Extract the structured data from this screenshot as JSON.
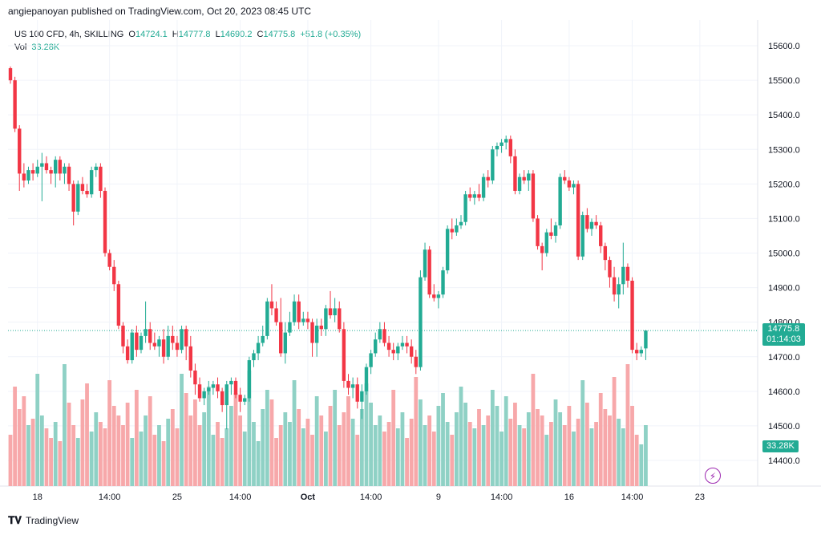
{
  "header": {
    "publisher_line": "angiepanoyan published on TradingView.com, Oct 20, 2023 08:45 UTC"
  },
  "legend": {
    "title": "US 100 CFD, 4h, SKILLING",
    "o_label": "O",
    "o": "14724.1",
    "h_label": "H",
    "h": "14777.8",
    "l_label": "L",
    "l": "14690.2",
    "c_label": "C",
    "c": "14775.8",
    "change": "+51.8 (+0.35%)",
    "vol_label": "Vol",
    "vol": "33.28K"
  },
  "price_tag": {
    "price": "14775.8",
    "countdown": "01:14:03"
  },
  "volume_tag": "33.28K",
  "footer": {
    "brand": "TradingView"
  },
  "colors": {
    "up": "#22ab94",
    "down": "#f23645",
    "up_vol": "#8fd1c5",
    "down_vol": "#f7a8aa",
    "grid": "#f0f3fa"
  },
  "chart_data": {
    "type": "candlestick",
    "y_ticks": [
      14400,
      14500,
      14600,
      14700,
      14800,
      14900,
      15000,
      15100,
      15200,
      15300,
      15400,
      15500,
      15600
    ],
    "y_tick_labels": [
      "14400.0",
      "14500.0",
      "14600.0",
      "14700.0",
      "14800.0",
      "14900.0",
      "15000.0",
      "15100.0",
      "15200.0",
      "15300.0",
      "15400.0",
      "15500.0",
      "15600.0"
    ],
    "x_ticks": [
      {
        "label": "18",
        "bar": 6
      },
      {
        "label": "14:00",
        "bar": 22
      },
      {
        "label": "25",
        "bar": 37
      },
      {
        "label": "14:00",
        "bar": 51
      },
      {
        "label": "Oct",
        "bar": 66
      },
      {
        "label": "14:00",
        "bar": 80
      },
      {
        "label": "9",
        "bar": 95
      },
      {
        "label": "14:00",
        "bar": 109
      },
      {
        "label": "16",
        "bar": 124
      },
      {
        "label": "14:00",
        "bar": 138
      },
      {
        "label": "23",
        "bar": 153
      }
    ],
    "last_price": 14775.8,
    "candles": [
      [
        15535,
        15540,
        15490,
        15500,
        1.6
      ],
      [
        15500,
        15510,
        15350,
        15360,
        3.1
      ],
      [
        15360,
        15370,
        15180,
        15230,
        2.4
      ],
      [
        15230,
        15260,
        15190,
        15210,
        2.8
      ],
      [
        15210,
        15250,
        15200,
        15240,
        1.9
      ],
      [
        15240,
        15260,
        15210,
        15230,
        2.1
      ],
      [
        15230,
        15270,
        15220,
        15250,
        3.5
      ],
      [
        15250,
        15290,
        15150,
        15260,
        2.2
      ],
      [
        15260,
        15280,
        15230,
        15240,
        1.8
      ],
      [
        15240,
        15250,
        15200,
        15230,
        1.5
      ],
      [
        15230,
        15280,
        15190,
        15270,
        2.0
      ],
      [
        15270,
        15280,
        15210,
        15230,
        1.4
      ],
      [
        15230,
        15260,
        15200,
        15250,
        3.8
      ],
      [
        15250,
        15260,
        15180,
        15200,
        2.6
      ],
      [
        15200,
        15210,
        15080,
        15120,
        1.9
      ],
      [
        15120,
        15210,
        15110,
        15200,
        1.5
      ],
      [
        15200,
        15220,
        15170,
        15180,
        2.7
      ],
      [
        15180,
        15200,
        15160,
        15170,
        3.2
      ],
      [
        15170,
        15250,
        15160,
        15240,
        1.7
      ],
      [
        15240,
        15260,
        15220,
        15250,
        2.3
      ],
      [
        15250,
        15260,
        15160,
        15180,
        2.0
      ],
      [
        15180,
        15190,
        14990,
        15000,
        1.8
      ],
      [
        15000,
        15010,
        14950,
        14960,
        3.3
      ],
      [
        14960,
        14980,
        14890,
        14910,
        2.5
      ],
      [
        14910,
        14920,
        14780,
        14790,
        2.2
      ],
      [
        14790,
        14800,
        14710,
        14730,
        1.9
      ],
      [
        14730,
        14750,
        14680,
        14690,
        2.6
      ],
      [
        14690,
        14780,
        14680,
        14770,
        1.5
      ],
      [
        14770,
        14790,
        14700,
        14720,
        3.0
      ],
      [
        14720,
        14770,
        14710,
        14760,
        1.7
      ],
      [
        14760,
        14860,
        14740,
        14780,
        2.2
      ],
      [
        14780,
        14800,
        14720,
        14740,
        2.8
      ],
      [
        14740,
        14770,
        14720,
        14730,
        1.6
      ],
      [
        14730,
        14760,
        14700,
        14750,
        1.9
      ],
      [
        14750,
        14780,
        14680,
        14700,
        1.4
      ],
      [
        14700,
        14790,
        14690,
        14760,
        2.1
      ],
      [
        14760,
        14790,
        14720,
        14740,
        2.4
      ],
      [
        14740,
        14760,
        14700,
        14720,
        1.8
      ],
      [
        14720,
        14790,
        14710,
        14780,
        3.5
      ],
      [
        14780,
        14790,
        14690,
        14730,
        2.9
      ],
      [
        14730,
        14760,
        14640,
        14660,
        2.2
      ],
      [
        14660,
        14680,
        14590,
        14620,
        2.7
      ],
      [
        14620,
        14640,
        14570,
        14580,
        1.9
      ],
      [
        14580,
        14610,
        14560,
        14600,
        2.3
      ],
      [
        14600,
        14630,
        14590,
        14610,
        3.1
      ],
      [
        14610,
        14630,
        14590,
        14620,
        1.6
      ],
      [
        14620,
        14640,
        14580,
        14600,
        2.0
      ],
      [
        14600,
        14610,
        14540,
        14560,
        1.5
      ],
      [
        14560,
        14630,
        14490,
        14620,
        1.8
      ],
      [
        14620,
        14640,
        14590,
        14630,
        2.5
      ],
      [
        14630,
        14640,
        14580,
        14590,
        2.9
      ],
      [
        14590,
        14610,
        14540,
        14570,
        2.2
      ],
      [
        14570,
        14590,
        14560,
        14580,
        1.7
      ],
      [
        14580,
        14700,
        14570,
        14690,
        3.6
      ],
      [
        14690,
        14720,
        14670,
        14710,
        2.0
      ],
      [
        14710,
        14760,
        14690,
        14740,
        1.4
      ],
      [
        14740,
        14790,
        14730,
        14760,
        2.4
      ],
      [
        14760,
        14870,
        14750,
        14860,
        3.0
      ],
      [
        14860,
        14910,
        14820,
        14840,
        2.7
      ],
      [
        14840,
        14860,
        14790,
        14800,
        1.5
      ],
      [
        14800,
        14870,
        14700,
        14710,
        1.9
      ],
      [
        14710,
        14800,
        14680,
        14770,
        2.3
      ],
      [
        14770,
        14830,
        14760,
        14800,
        2.0
      ],
      [
        14800,
        14880,
        14790,
        14860,
        3.3
      ],
      [
        14860,
        14880,
        14780,
        14800,
        2.4
      ],
      [
        14800,
        14830,
        14790,
        14810,
        1.8
      ],
      [
        14810,
        14830,
        14780,
        14800,
        2.1
      ],
      [
        14800,
        14810,
        14700,
        14740,
        1.6
      ],
      [
        14740,
        14810,
        14700,
        14790,
        2.8
      ],
      [
        14790,
        14810,
        14760,
        14780,
        2.2
      ],
      [
        14780,
        14850,
        14760,
        14840,
        1.7
      ],
      [
        14840,
        14890,
        14810,
        14820,
        2.5
      ],
      [
        14820,
        14870,
        14800,
        14840,
        3.0
      ],
      [
        14840,
        14860,
        14770,
        14780,
        1.9
      ],
      [
        14780,
        14800,
        14610,
        14630,
        2.3
      ],
      [
        14630,
        14650,
        14590,
        14610,
        2.8
      ],
      [
        14610,
        14640,
        14580,
        14620,
        2.1
      ],
      [
        14620,
        14640,
        14550,
        14570,
        1.6
      ],
      [
        14570,
        14620,
        14520,
        14600,
        2.4
      ],
      [
        14600,
        14680,
        14590,
        14670,
        3.2
      ],
      [
        14670,
        14720,
        14650,
        14710,
        2.6
      ],
      [
        14710,
        14770,
        14700,
        14750,
        1.9
      ],
      [
        14750,
        14800,
        14740,
        14780,
        2.2
      ],
      [
        14780,
        14800,
        14730,
        14740,
        1.7
      ],
      [
        14740,
        14760,
        14700,
        14720,
        2.0
      ],
      [
        14720,
        14740,
        14690,
        14710,
        3.0
      ],
      [
        14710,
        14740,
        14690,
        14730,
        1.8
      ],
      [
        14730,
        14760,
        14720,
        14740,
        2.3
      ],
      [
        14740,
        14760,
        14710,
        14730,
        1.5
      ],
      [
        14730,
        14750,
        14680,
        14700,
        2.1
      ],
      [
        14700,
        14720,
        14650,
        14670,
        3.4
      ],
      [
        14670,
        14950,
        14660,
        14930,
        2.7
      ],
      [
        14930,
        15030,
        14920,
        15010,
        1.9
      ],
      [
        15010,
        15020,
        14870,
        14880,
        2.2
      ],
      [
        14880,
        14910,
        14860,
        14870,
        1.7
      ],
      [
        14870,
        14890,
        14840,
        14880,
        2.5
      ],
      [
        14880,
        14960,
        14870,
        14950,
        2.9
      ],
      [
        14950,
        15080,
        14940,
        15070,
        2.0
      ],
      [
        15070,
        15100,
        15040,
        15060,
        1.6
      ],
      [
        15060,
        15100,
        15050,
        15080,
        2.3
      ],
      [
        15080,
        15110,
        15070,
        15090,
        3.1
      ],
      [
        15090,
        15180,
        15080,
        15170,
        2.6
      ],
      [
        15170,
        15190,
        15150,
        15160,
        2.0
      ],
      [
        15160,
        15180,
        15140,
        15170,
        1.8
      ],
      [
        15170,
        15200,
        15150,
        15160,
        2.4
      ],
      [
        15160,
        15230,
        15150,
        15220,
        1.9
      ],
      [
        15220,
        15240,
        15190,
        15210,
        2.2
      ],
      [
        15210,
        15310,
        15200,
        15300,
        3.0
      ],
      [
        15300,
        15320,
        15280,
        15310,
        2.5
      ],
      [
        15310,
        15330,
        15290,
        15320,
        1.7
      ],
      [
        15320,
        15340,
        15300,
        15330,
        2.8
      ],
      [
        15330,
        15340,
        15260,
        15280,
        2.1
      ],
      [
        15280,
        15300,
        15170,
        15180,
        2.6
      ],
      [
        15180,
        15230,
        15170,
        15220,
        1.9
      ],
      [
        15220,
        15240,
        15200,
        15210,
        1.8
      ],
      [
        15210,
        15240,
        15180,
        15230,
        2.3
      ],
      [
        15230,
        15240,
        15090,
        15100,
        3.5
      ],
      [
        15100,
        15110,
        15010,
        15020,
        2.4
      ],
      [
        15020,
        15030,
        14950,
        15000,
        2.2
      ],
      [
        15000,
        15070,
        14990,
        15060,
        1.6
      ],
      [
        15060,
        15100,
        15040,
        15050,
        2.0
      ],
      [
        15050,
        15090,
        15030,
        15080,
        2.7
      ],
      [
        15080,
        15230,
        15070,
        15220,
        2.3
      ],
      [
        15220,
        15240,
        15200,
        15210,
        1.9
      ],
      [
        15210,
        15220,
        15180,
        15190,
        2.5
      ],
      [
        15190,
        15210,
        15170,
        15200,
        1.7
      ],
      [
        15200,
        15210,
        14980,
        14990,
        2.1
      ],
      [
        14990,
        15120,
        14980,
        15110,
        3.3
      ],
      [
        15110,
        15130,
        15060,
        15070,
        2.6
      ],
      [
        15070,
        15100,
        15050,
        15090,
        1.8
      ],
      [
        15090,
        15110,
        15070,
        15080,
        2.0
      ],
      [
        15080,
        15090,
        15000,
        15020,
        2.9
      ],
      [
        15020,
        15030,
        14950,
        14980,
        2.4
      ],
      [
        14980,
        14990,
        14900,
        14930,
        2.2
      ],
      [
        14930,
        14960,
        14860,
        14880,
        3.4
      ],
      [
        14880,
        14930,
        14840,
        14910,
        2.1
      ],
      [
        14910,
        15030,
        14880,
        14960,
        1.8
      ],
      [
        14960,
        14970,
        14900,
        14920,
        3.8
      ],
      [
        14920,
        14930,
        14710,
        14720,
        2.5
      ],
      [
        14720,
        14740,
        14690,
        14710,
        1.6
      ],
      [
        14710,
        14730,
        14700,
        14720,
        1.3
      ],
      [
        14724.1,
        14777.8,
        14690.2,
        14775.8,
        1.9
      ]
    ]
  }
}
